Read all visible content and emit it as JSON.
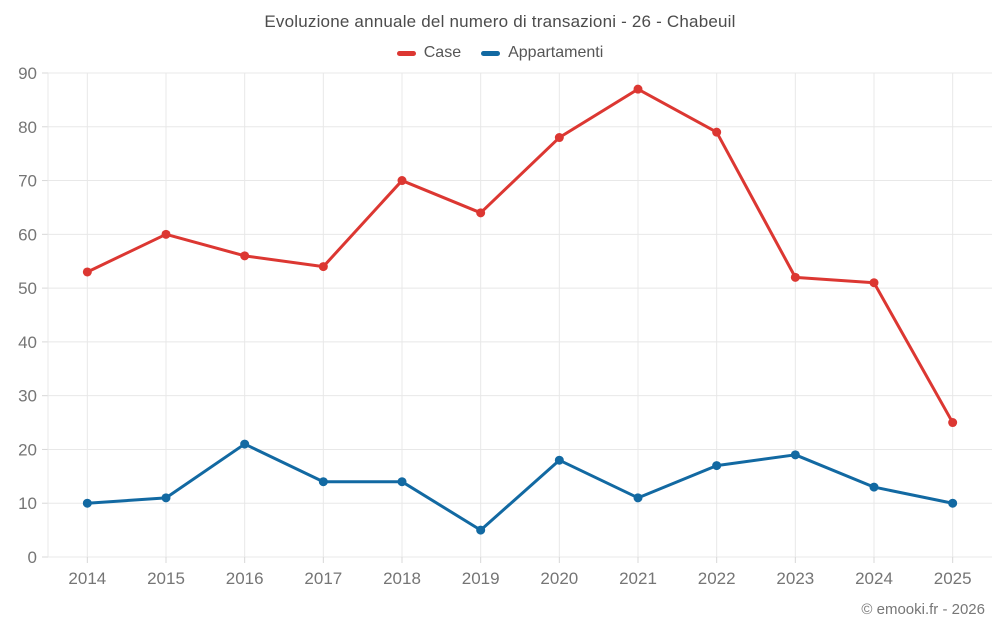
{
  "title": "Evoluzione annuale del numero di transazioni - 26 - Chabeuil",
  "footer": {
    "copyright": "© emooki.fr - 2026"
  },
  "chart_data": {
    "type": "line",
    "title": "Evoluzione annuale del numero di transazioni - 26 - Chabeuil",
    "categories": [
      "2014",
      "2015",
      "2016",
      "2017",
      "2018",
      "2019",
      "2020",
      "2021",
      "2022",
      "2023",
      "2024",
      "2025"
    ],
    "series": [
      {
        "name": "Case",
        "color": "#dc3732",
        "values": [
          53,
          60,
          56,
          54,
          70,
          64,
          78,
          87,
          79,
          52,
          51,
          25
        ]
      },
      {
        "name": "Appartamenti",
        "color": "#1269a2",
        "values": [
          10,
          11,
          21,
          14,
          14,
          5,
          18,
          11,
          17,
          19,
          13,
          10
        ]
      }
    ],
    "xlabel": "",
    "ylabel": "",
    "ylim": [
      0,
      90
    ],
    "ytick_step": 10,
    "grid": true,
    "legend_position": "top",
    "colors": {
      "grid": "#e8e8e8",
      "tick": "#d8d8d8",
      "axis_text": "#757575"
    }
  }
}
